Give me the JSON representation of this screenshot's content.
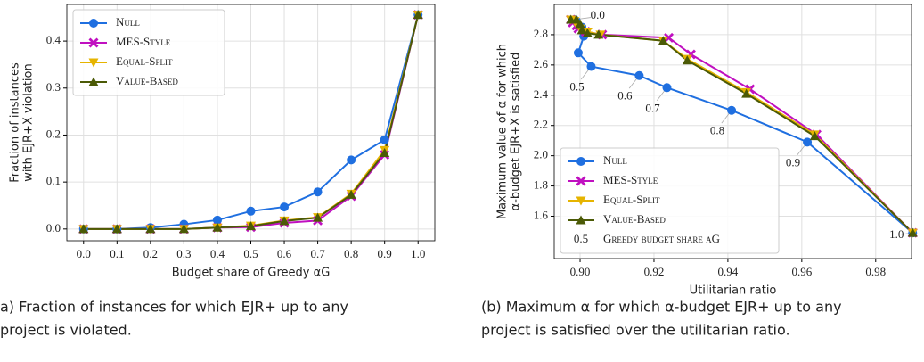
{
  "chart_data": [
    {
      "type": "line",
      "xlabel": "Budget share of Greedy αG",
      "ylabel": [
        "Fraction of instances",
        "with EJR+X violation"
      ],
      "x": [
        0,
        0.1,
        0.2,
        0.3,
        0.4,
        0.5,
        0.6,
        0.7,
        0.8,
        0.9,
        1.0
      ],
      "series": [
        {
          "name": "Null",
          "color": "#1f6fe0",
          "marker": "circle",
          "values": [
            0,
            0,
            0.003,
            0.01,
            0.019,
            0.038,
            0.047,
            0.079,
            0.147,
            0.19,
            0.456
          ]
        },
        {
          "name": "MES-Style",
          "color": "#c010c0",
          "marker": "x",
          "values": [
            0,
            0,
            0,
            0,
            0.003,
            0.004,
            0.013,
            0.018,
            0.07,
            0.158,
            0.456
          ]
        },
        {
          "name": "Equal-Split",
          "color": "#e6b400",
          "marker": "tri-down",
          "values": [
            0,
            0,
            0,
            0,
            0.003,
            0.007,
            0.018,
            0.025,
            0.075,
            0.168,
            0.456
          ]
        },
        {
          "name": "Value-Based",
          "color": "#4b5a06",
          "marker": "tri-up",
          "values": [
            0,
            0,
            0,
            0,
            0.003,
            0.006,
            0.017,
            0.024,
            0.073,
            0.162,
            0.456
          ]
        }
      ],
      "xlim": [
        -0.05,
        1.05
      ],
      "xticks": [
        {
          "value": 0,
          "label": "0.0"
        },
        0.1,
        0.2,
        0.3,
        0.4,
        0.5,
        0.6,
        0.7,
        0.8,
        0.9,
        {
          "value": 1,
          "label": "1.0"
        }
      ],
      "ylim": [
        -0.025,
        0.478
      ],
      "yticks": [
        {
          "value": 0,
          "label": "0.0"
        },
        0.1,
        0.2,
        0.3,
        0.4
      ],
      "grid": true,
      "legend": "upper left",
      "caption": [
        "a) Fraction of instances for which EJR+ up to any",
        "project is violated."
      ]
    },
    {
      "type": "line",
      "xlabel": "Utilitarian ratio",
      "ylabel": [
        "Maximum value of α for which",
        "α-budget EJR+X is satisfied"
      ],
      "series": [
        {
          "name": "Null",
          "color": "#1f6fe0",
          "marker": "circle",
          "x": [
            0.8985,
            0.899,
            0.9005,
            0.901,
            0.8995,
            0.903,
            0.916,
            0.9235,
            0.941,
            0.9615,
            0.99
          ],
          "values": [
            2.9,
            2.89,
            2.85,
            2.79,
            2.68,
            2.59,
            2.53,
            2.45,
            2.3,
            2.09,
            1.49
          ]
        },
        {
          "name": "MES-Style",
          "color": "#c010c0",
          "marker": "x",
          "x": [
            0.8975,
            0.898,
            0.899,
            0.8995,
            0.9015,
            0.906,
            0.924,
            0.93,
            0.946,
            0.964,
            0.99
          ],
          "values": [
            2.9,
            2.88,
            2.86,
            2.84,
            2.82,
            2.8,
            2.78,
            2.67,
            2.44,
            2.14,
            1.49
          ]
        },
        {
          "name": "Equal-Split",
          "color": "#e6b400",
          "marker": "tri-down",
          "x": [
            0.8975,
            0.8985,
            0.899,
            0.9,
            0.902,
            0.9055,
            0.9225,
            0.929,
            0.945,
            0.9635,
            0.99
          ],
          "values": [
            2.9,
            2.89,
            2.87,
            2.84,
            2.82,
            2.8,
            2.76,
            2.64,
            2.42,
            2.14,
            1.49
          ]
        },
        {
          "name": "Value-Based",
          "color": "#4b5a06",
          "marker": "tri-up",
          "x": [
            0.8975,
            0.899,
            0.9,
            0.9005,
            0.902,
            0.905,
            0.9225,
            0.929,
            0.945,
            0.9635,
            0.99
          ],
          "values": [
            2.9,
            2.9,
            2.87,
            2.83,
            2.81,
            2.8,
            2.76,
            2.63,
            2.41,
            2.13,
            1.49
          ]
        }
      ],
      "annotations": [
        "0.0",
        "0.5",
        "0.6",
        "0.7",
        "0.8",
        "0.9",
        "1.0"
      ],
      "legend_note": {
        "sample": "0.5",
        "text": "Greedy budget share αG"
      },
      "xlim": [
        0.893,
        0.9897
      ],
      "xticks": [
        {
          "value": 0.9,
          "label": "0.90"
        },
        0.92,
        0.94,
        0.96,
        0.98
      ],
      "ylim": [
        1.32,
        3.0
      ],
      "yticks": [
        1.6,
        1.8,
        {
          "value": 2,
          "label": "2.0"
        },
        2.2,
        2.4,
        2.6,
        2.8
      ],
      "grid": true,
      "legend": "lower left",
      "caption": [
        "(b) Maximum α for which α-budget EJR+ up to any",
        "project is satisfied over the utilitarian ratio."
      ]
    }
  ]
}
